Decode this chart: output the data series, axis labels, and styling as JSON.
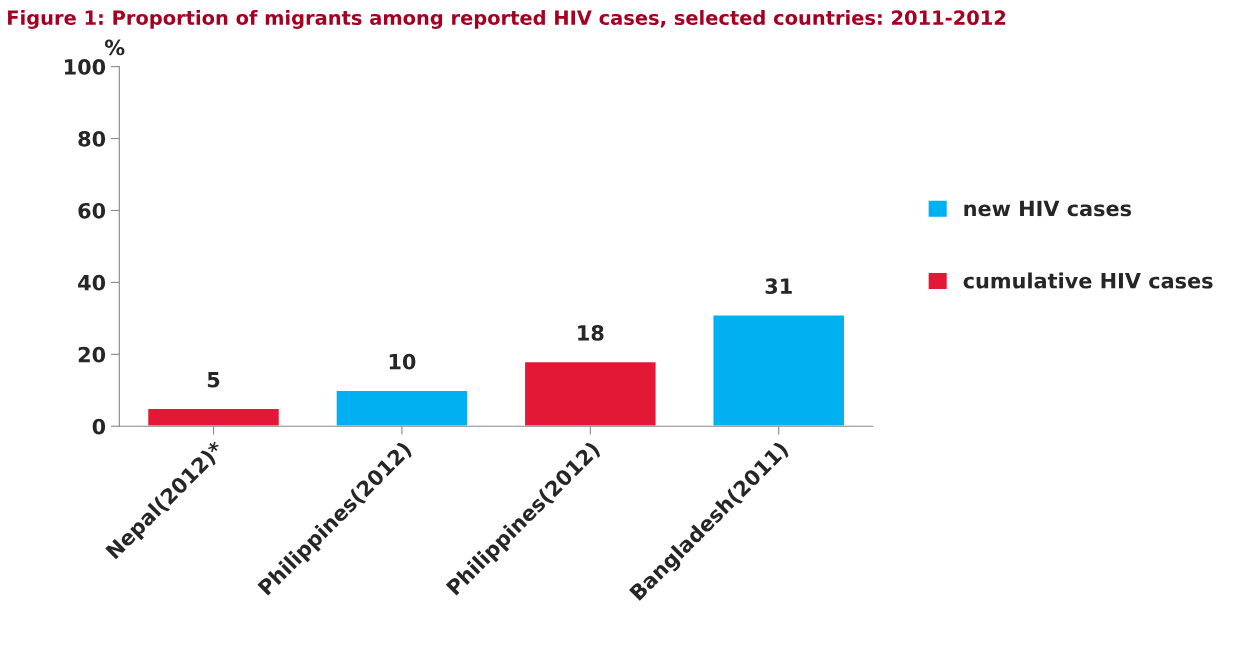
{
  "chart_data": {
    "type": "bar",
    "title": "Figure 1: Proportion of migrants among reported HIV cases, selected countries: 2011-2012",
    "ylabel": "%",
    "categories": [
      "Nepal(2012)*",
      "Philippines(2012)",
      "Philippines(2012)",
      "Bangladesh(2011)"
    ],
    "series": [
      {
        "name": "new HIV cases",
        "color": "#00b0f0",
        "values": [
          null,
          10,
          null,
          31
        ]
      },
      {
        "name": "cumulative HIV cases",
        "color": "#e31837",
        "values": [
          5,
          null,
          18,
          null
        ]
      }
    ],
    "ylim": [
      0,
      100
    ],
    "yticks": [
      0,
      20,
      40,
      60,
      80,
      100
    ],
    "data_labels": true,
    "legend": "right",
    "grid": false
  }
}
